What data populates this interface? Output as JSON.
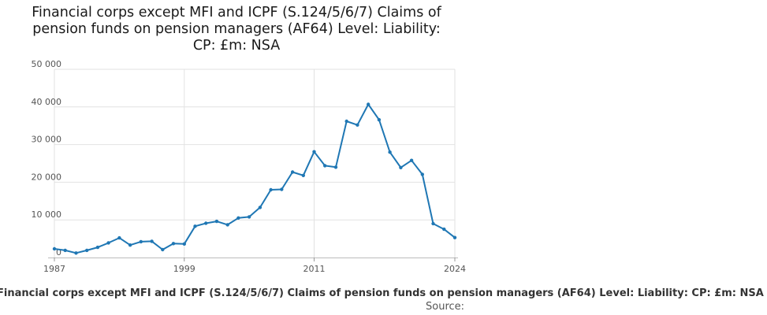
{
  "chart_data": {
    "type": "line",
    "title_lines": [
      "Financial corps except MFI and ICPF (S.124/5/6/7) Claims of",
      "pension funds on pension managers (AF64) Level: Liability:",
      "CP: £m: NSA"
    ],
    "x": [
      1987,
      1988,
      1989,
      1990,
      1991,
      1992,
      1993,
      1994,
      1995,
      1996,
      1997,
      1998,
      1999,
      2000,
      2001,
      2002,
      2003,
      2004,
      2005,
      2006,
      2007,
      2008,
      2009,
      2010,
      2011,
      2012,
      2013,
      2014,
      2015,
      2016,
      2017,
      2018,
      2019,
      2020,
      2021,
      2022,
      2023,
      2024
    ],
    "series": [
      {
        "name": "Financial corps except MFI and ICPF (S.124/5/6/7) Claims of pension funds on pension managers (AF64) Level: Liability: CP: £m: NSA",
        "values": [
          2300,
          1900,
          1200,
          1900,
          2700,
          3900,
          5200,
          3300,
          4200,
          4300,
          2100,
          3700,
          3600,
          8300,
          9100,
          9600,
          8700,
          10500,
          10800,
          13300,
          18000,
          18100,
          22700,
          21800,
          28100,
          24400,
          24000,
          36200,
          35200,
          40700,
          36600,
          28000,
          23900,
          25800,
          22100,
          9000,
          7500,
          5300
        ]
      }
    ],
    "x_ticks": [
      "1987",
      "1999",
      "2011",
      "2024"
    ],
    "y_ticks": [
      "0",
      "10 000",
      "20 000",
      "30 000",
      "40 000",
      "50 000"
    ],
    "ylim": [
      0,
      50000
    ],
    "xlim": [
      1987,
      2024
    ],
    "grid": true,
    "line_color": "#1f77b4",
    "source_label": "Source:"
  }
}
